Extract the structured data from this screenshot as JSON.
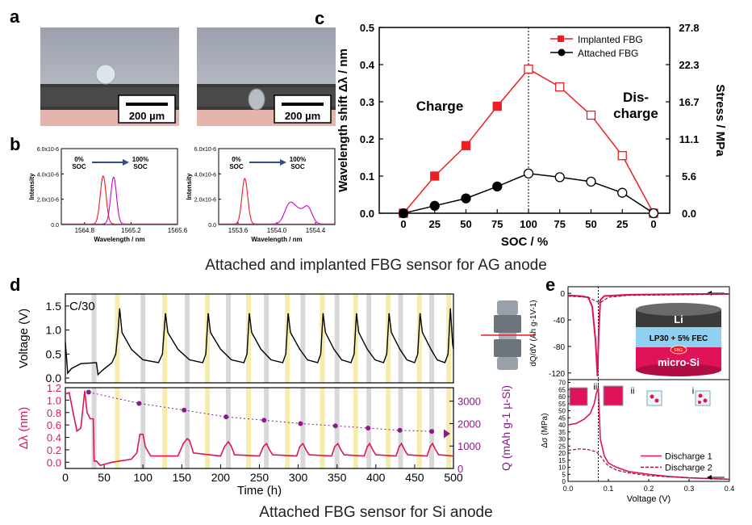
{
  "panel_labels": {
    "a": "a",
    "b": "b",
    "c": "c",
    "d": "d",
    "e": "e"
  },
  "photos": {
    "scale_bar": "200 µm"
  },
  "captions": {
    "top": "Attached and implanted FBG sensor for AG anode",
    "bottom": "Attached FBG sensor for Si anode"
  },
  "colors": {
    "red": "#ee1c25",
    "magenta": "#cc00cc",
    "crimson": "#e0135a",
    "purple": "#8a1a8a",
    "black": "#000000",
    "yellow_band": "#f6eaa3",
    "grey_band": "#c8c8c8"
  },
  "chart_data": [
    {
      "id": "b-left",
      "type": "line",
      "ylabel": "Intensity",
      "xlabel": "Wavelength / nm",
      "xticks": [
        "1564.8",
        "1565.2",
        "1565.6"
      ],
      "yticks": [
        "0.0",
        "2.0x10-6",
        "4.0x10-6",
        "6.0x10-6"
      ],
      "xlim": [
        1564.6,
        1565.6
      ],
      "ylim": [
        0,
        6e-06
      ],
      "annotations": {
        "start": "0%",
        "start2": "SOC",
        "end": "100%",
        "end2": "SOC"
      },
      "series": [
        {
          "name": "0% SOC",
          "color": "#ee1c25",
          "peaks": [
            [
              1564.96,
              3.8e-06,
              0.025
            ]
          ]
        },
        {
          "name": "100% SOC",
          "color": "#cc00cc",
          "peaks": [
            [
              1565.05,
              3.7e-06,
              0.025
            ]
          ]
        }
      ]
    },
    {
      "id": "b-right",
      "type": "line",
      "ylabel": "Intensity",
      "xlabel": "Wavelength / nm",
      "xticks": [
        "1553.6",
        "1554.0",
        "1554.4"
      ],
      "yticks": [
        "0.0",
        "2.0x10-6",
        "4.0x10-6",
        "6.0x10-6"
      ],
      "xlim": [
        1553.4,
        1554.6
      ],
      "ylim": [
        0,
        6e-06
      ],
      "annotations": {
        "start": "0%",
        "start2": "SOC",
        "end": "100%",
        "end2": "SOC"
      },
      "series": [
        {
          "name": "0% SOC",
          "color": "#ee1c25",
          "peaks": [
            [
              1553.67,
              3.6e-06,
              0.03
            ]
          ]
        },
        {
          "name": "100% SOC",
          "color": "#cc00cc",
          "peaks": [
            [
              1554.13,
              1.5e-06,
              0.05
            ],
            [
              1554.32,
              1.3e-06,
              0.045
            ],
            [
              1554.22,
              9e-07,
              0.05
            ]
          ]
        }
      ]
    },
    {
      "id": "c",
      "type": "line",
      "ylabel": "Wavelength shift Δλ / nm",
      "ylabel_right": "Stress / MPa",
      "xlabel": "SOC / %",
      "categories": [
        "0",
        "25",
        "50",
        "75",
        "100",
        "75",
        "50",
        "25",
        "0"
      ],
      "yticks": [
        "0.0",
        "0.1",
        "0.2",
        "0.3",
        "0.4",
        "0.5"
      ],
      "yticks_right": [
        "0.0",
        "5.6",
        "11.1",
        "16.7",
        "22.3",
        "27.8"
      ],
      "ylim": [
        0,
        0.5
      ],
      "phase_labels": {
        "charge": "Charge",
        "discharge1": "Dis-",
        "discharge2": "charge"
      },
      "series": [
        {
          "name": "Implanted FBG",
          "color": "#ee1c25",
          "marker": "square",
          "values": [
            0.0,
            0.1,
            0.182,
            0.288,
            0.388,
            0.34,
            0.264,
            0.155,
            0.0
          ]
        },
        {
          "name": "Attached FBG",
          "color": "#000000",
          "marker": "circle",
          "values": [
            0.0,
            0.02,
            0.04,
            0.072,
            0.107,
            0.097,
            0.085,
            0.055,
            0.0
          ]
        }
      ]
    },
    {
      "id": "d-voltage",
      "type": "line",
      "ylabel": "Voltage (V)",
      "rate_label": "C/30",
      "yticks": [
        "0.0",
        "0.5",
        "1.0",
        "1.5"
      ],
      "ylim": [
        -0.1,
        1.75
      ],
      "xlim": [
        0,
        500
      ],
      "series": [
        {
          "name": "Voltage",
          "color": "#000000",
          "points": [
            [
              0,
              0.75
            ],
            [
              3,
              0.1
            ],
            [
              8,
              0.2
            ],
            [
              20,
              0.3
            ],
            [
              40,
              0.32
            ],
            [
              42,
              0.07
            ],
            [
              47,
              0.15
            ],
            [
              60,
              0.32
            ],
            [
              65,
              0.5
            ],
            [
              68,
              1.0
            ],
            [
              70,
              1.45
            ],
            [
              73,
              0.95
            ],
            [
              85,
              0.6
            ],
            [
              100,
              0.38
            ],
            [
              120,
              0.32
            ],
            [
              125,
              0.5
            ],
            [
              129,
              1.35
            ],
            [
              132,
              0.95
            ],
            [
              145,
              0.6
            ],
            [
              160,
              0.38
            ],
            [
              177,
              0.32
            ],
            [
              181,
              0.5
            ],
            [
              184,
              1.35
            ],
            [
              187,
              0.95
            ],
            [
              200,
              0.6
            ],
            [
              214,
              0.38
            ],
            [
              230,
              0.32
            ],
            [
              234,
              0.5
            ],
            [
              237,
              1.35
            ],
            [
              240,
              0.95
            ],
            [
              252,
              0.6
            ],
            [
              265,
              0.38
            ],
            [
              280,
              0.32
            ],
            [
              284,
              0.5
            ],
            [
              287,
              1.35
            ],
            [
              290,
              0.95
            ],
            [
              302,
              0.6
            ],
            [
              312,
              0.38
            ],
            [
              325,
              0.32
            ],
            [
              329,
              0.5
            ],
            [
              332,
              1.35
            ],
            [
              335,
              0.95
            ],
            [
              346,
              0.6
            ],
            [
              356,
              0.38
            ],
            [
              368,
              0.32
            ],
            [
              372,
              0.5
            ],
            [
              375,
              1.35
            ],
            [
              378,
              0.95
            ],
            [
              389,
              0.6
            ],
            [
              399,
              0.38
            ],
            [
              410,
              0.32
            ],
            [
              414,
              0.5
            ],
            [
              417,
              1.35
            ],
            [
              420,
              0.95
            ],
            [
              431,
              0.6
            ],
            [
              440,
              0.38
            ],
            [
              450,
              0.32
            ],
            [
              454,
              0.5
            ],
            [
              457,
              1.35
            ],
            [
              460,
              0.95
            ],
            [
              471,
              0.6
            ],
            [
              479,
              0.38
            ],
            [
              489,
              0.32
            ],
            [
              493,
              0.5
            ],
            [
              496,
              1.45
            ],
            [
              499,
              0.7
            ],
            [
              500,
              0.6
            ]
          ]
        }
      ],
      "yellow_bands": [
        67,
        128,
        183,
        236,
        286,
        331,
        374,
        416,
        456,
        494
      ],
      "grey_bands": [
        37,
        100,
        157,
        210,
        259,
        306,
        350,
        391,
        432,
        472
      ]
    },
    {
      "id": "d-strain",
      "type": "line",
      "ylabel": "Δλ (nm)",
      "ylabel_right": "Q (mAh g-1 µ-Si)",
      "xlabel": "Time (h)",
      "xticks": [
        "0",
        "50",
        "100",
        "150",
        "200",
        "250",
        "300",
        "350",
        "400",
        "450",
        "500"
      ],
      "yticks": [
        "0.0",
        "0.2",
        "0.4",
        "0.6",
        "0.8",
        "1.0",
        "1.2"
      ],
      "yticks_right": [
        "0",
        "1000",
        "2000",
        "3000"
      ],
      "xlim": [
        0,
        500
      ],
      "ylim": [
        -0.1,
        1.2
      ],
      "ylim_right": [
        0,
        3600
      ],
      "series": [
        {
          "name": "Δλ",
          "color": "#e0135a",
          "points": [
            [
              0,
              1.1
            ],
            [
              5,
              1.12
            ],
            [
              10,
              0.8
            ],
            [
              15,
              0.5
            ],
            [
              20,
              0.55
            ],
            [
              25,
              1.15
            ],
            [
              28,
              0.8
            ],
            [
              32,
              0.7
            ],
            [
              36,
              0.7
            ],
            [
              37,
              0.02
            ],
            [
              40,
              0.02
            ],
            [
              45,
              -0.05
            ],
            [
              60,
              0.0
            ],
            [
              85,
              0.05
            ],
            [
              92,
              0.15
            ],
            [
              96,
              0.45
            ],
            [
              100,
              0.45
            ],
            [
              103,
              0.25
            ],
            [
              110,
              0.1
            ],
            [
              145,
              0.1
            ],
            [
              152,
              0.3
            ],
            [
              157,
              0.38
            ],
            [
              160,
              0.35
            ],
            [
              165,
              0.15
            ],
            [
              200,
              0.1
            ],
            [
              205,
              0.25
            ],
            [
              210,
              0.33
            ],
            [
              214,
              0.25
            ],
            [
              218,
              0.12
            ],
            [
              250,
              0.1
            ],
            [
              255,
              0.25
            ],
            [
              259,
              0.3
            ],
            [
              263,
              0.2
            ],
            [
              267,
              0.12
            ],
            [
              298,
              0.1
            ],
            [
              302,
              0.25
            ],
            [
              306,
              0.3
            ],
            [
              310,
              0.2
            ],
            [
              314,
              0.12
            ],
            [
              343,
              0.1
            ],
            [
              347,
              0.25
            ],
            [
              351,
              0.3
            ],
            [
              355,
              0.2
            ],
            [
              359,
              0.12
            ],
            [
              385,
              0.1
            ],
            [
              389,
              0.25
            ],
            [
              392,
              0.3
            ],
            [
              396,
              0.2
            ],
            [
              400,
              0.12
            ],
            [
              426,
              0.1
            ],
            [
              430,
              0.25
            ],
            [
              433,
              0.3
            ],
            [
              437,
              0.2
            ],
            [
              441,
              0.12
            ],
            [
              466,
              0.1
            ],
            [
              470,
              0.25
            ],
            [
              473,
              0.3
            ],
            [
              477,
              0.2
            ],
            [
              481,
              0.12
            ],
            [
              500,
              0.1
            ]
          ]
        },
        {
          "name": "Q",
          "color": "#8a1a8a",
          "axis": "right",
          "points": [
            [
              30,
              3400
            ],
            [
              95,
              2900
            ],
            [
              153,
              2600
            ],
            [
              207,
              2300
            ],
            [
              256,
              2150
            ],
            [
              303,
              2000
            ],
            [
              348,
              1900
            ],
            [
              390,
              1800
            ],
            [
              431,
              1700
            ],
            [
              472,
              1650
            ]
          ]
        }
      ]
    },
    {
      "id": "e-dqdv",
      "type": "line",
      "ylabel": "dQ/dV (Ah g-1V-1)",
      "rate_label": "C/30",
      "yticks": [
        "0",
        "-40",
        "-80",
        "-120"
      ],
      "ylim": [
        -130,
        10
      ],
      "xlim": [
        0,
        0.4
      ],
      "cell_labels": {
        "top": "Li",
        "middle": "LP30 + 5% FEC",
        "fbg": "FBG",
        "bottom": "micro-Si"
      },
      "series": [
        {
          "name": "Discharge 1",
          "color": "#e0135a",
          "style": "solid",
          "points": [
            [
              0,
              -3
            ],
            [
              0.03,
              -4
            ],
            [
              0.05,
              -6
            ],
            [
              0.06,
              -20
            ],
            [
              0.068,
              -70
            ],
            [
              0.073,
              -125
            ],
            [
              0.076,
              -60
            ],
            [
              0.08,
              -10
            ],
            [
              0.09,
              -4
            ],
            [
              0.15,
              -2
            ],
            [
              0.3,
              -1
            ],
            [
              0.4,
              -1
            ]
          ]
        },
        {
          "name": "Discharge 2",
          "color": "#8a1a3a",
          "style": "dashed",
          "points": [
            [
              0,
              -4
            ],
            [
              0.05,
              -6
            ],
            [
              0.07,
              -12
            ],
            [
              0.08,
              -14
            ],
            [
              0.1,
              -6
            ],
            [
              0.15,
              -3
            ],
            [
              0.3,
              -2
            ],
            [
              0.4,
              -1
            ]
          ]
        }
      ]
    },
    {
      "id": "e-stress",
      "type": "line",
      "ylabel": "Δσ (MPa)",
      "xlabel": "Voltage (V)",
      "xticks": [
        "0.0",
        "0.1",
        "0.2",
        "0.3",
        "0.4"
      ],
      "yticks": [
        "0",
        "5",
        "10",
        "15",
        "20",
        "25",
        "30",
        "35",
        "40",
        "45",
        "50",
        "55",
        "60",
        "65",
        "70"
      ],
      "xlim": [
        0,
        0.4
      ],
      "ylim": [
        0,
        72
      ],
      "stage_labels": [
        "iii",
        "ii",
        "i"
      ],
      "legend": [
        "Discharge 1",
        "Discharge 2"
      ],
      "series": [
        {
          "name": "Discharge 1",
          "color": "#e0135a",
          "style": "solid",
          "points": [
            [
              0,
              40
            ],
            [
              0.02,
              41
            ],
            [
              0.04,
              44
            ],
            [
              0.055,
              48
            ],
            [
              0.065,
              55
            ],
            [
              0.07,
              62
            ],
            [
              0.075,
              66
            ],
            [
              0.08,
              30
            ],
            [
              0.09,
              18
            ],
            [
              0.1,
              13
            ],
            [
              0.12,
              10
            ],
            [
              0.15,
              7
            ],
            [
              0.2,
              5
            ],
            [
              0.25,
              3.5
            ],
            [
              0.3,
              2.5
            ],
            [
              0.35,
              2
            ],
            [
              0.4,
              1.5
            ]
          ]
        },
        {
          "name": "Discharge 2",
          "color": "#8a1a3a",
          "style": "dashed",
          "points": [
            [
              0,
              22
            ],
            [
              0.03,
              23
            ],
            [
              0.05,
              22.5
            ],
            [
              0.07,
              21
            ],
            [
              0.08,
              18
            ],
            [
              0.09,
              14
            ],
            [
              0.1,
              11
            ],
            [
              0.12,
              8
            ],
            [
              0.15,
              6
            ],
            [
              0.2,
              4
            ],
            [
              0.3,
              2.5
            ],
            [
              0.4,
              1.5
            ]
          ]
        }
      ]
    }
  ]
}
